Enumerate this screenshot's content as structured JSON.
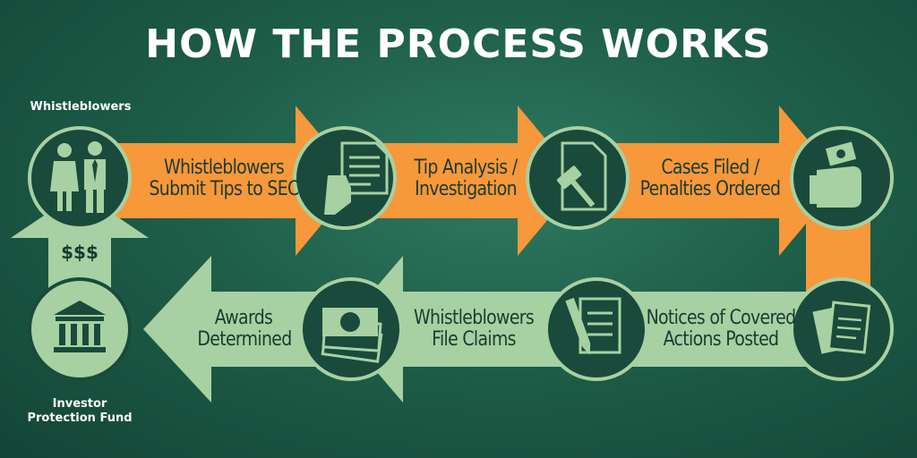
{
  "title": "HOW THE PROCESS WORKS",
  "labels": {
    "whistleblowers": "Whistleblowers",
    "fund_line1": "Investor",
    "fund_line2": "Protection Fund",
    "money": "$$$"
  },
  "steps": {
    "submit": [
      "Whistleblowers",
      "Submit Tips to SEC"
    ],
    "analysis": [
      "Tip Analysis /",
      "Investigation"
    ],
    "cases": [
      "Cases Filed /",
      "Penalties Ordered"
    ],
    "notices": [
      "Notices of Covered",
      "Actions Posted"
    ],
    "claims": [
      "Whistleblowers",
      "File Claims"
    ],
    "awards": [
      "Awards",
      "Determined"
    ]
  },
  "colors": {
    "orange": "#f7983a",
    "light_green": "#a7d1a2",
    "circle_fill": "#1a4a3b",
    "icon": "#a7d1a2"
  },
  "icons": [
    "people-icon",
    "document-hand-icon",
    "gavel-document-icon",
    "money-hand-icon",
    "documents-icon",
    "pen-document-icon",
    "cash-stack-icon",
    "bank-icon"
  ]
}
